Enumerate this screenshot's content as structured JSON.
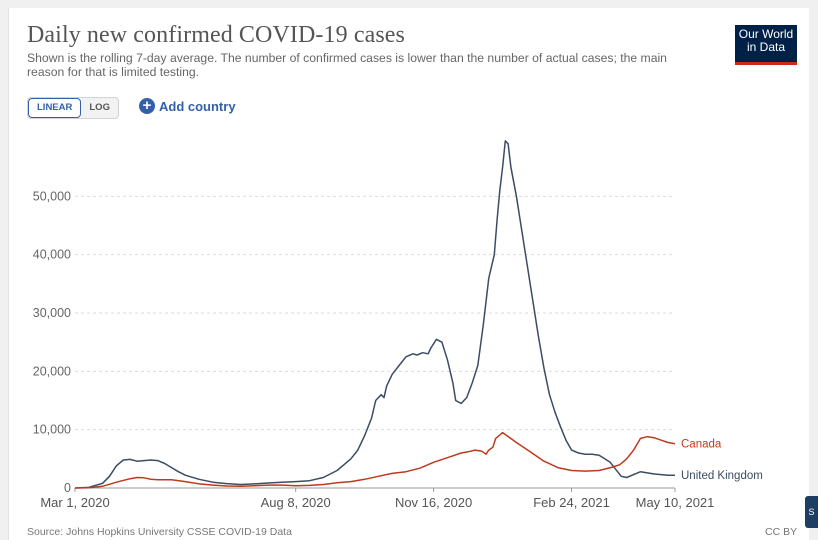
{
  "header": {
    "title": "Daily new confirmed COVID-19 cases",
    "subtitle": "Shown is the rolling 7-day average. The number of confirmed cases is lower than the number of actual cases; the main reason for that is limited testing.",
    "logo_line1": "Our World",
    "logo_line2": "in Data"
  },
  "controls": {
    "linear_label": "LINEAR",
    "log_label": "LOG",
    "add_country_label": "Add country",
    "add_icon": "plus-circle-icon"
  },
  "footer": {
    "source": "Source: Johns Hopkins University CSSE COVID-19 Data",
    "license": "CC BY"
  },
  "edge_tab_label": "S",
  "colors": {
    "uk": "#3b4c64",
    "canada": "#bd3b1d",
    "accent": "#3360a9",
    "logo_bg": "#002147",
    "logo_bar": "#ce261e"
  },
  "chart_data": {
    "type": "line",
    "title": "Daily new confirmed COVID-19 cases",
    "xlabel": "",
    "ylabel": "",
    "ylim": [
      0,
      60000
    ],
    "xlim_days": [
      0,
      435
    ],
    "yticks": [
      0,
      10000,
      20000,
      30000,
      40000,
      50000
    ],
    "ytick_labels": [
      "0",
      "10,000",
      "20,000",
      "30,000",
      "40,000",
      "50,000"
    ],
    "xticks": [
      0,
      160,
      260,
      360,
      435
    ],
    "xtick_labels": [
      "Mar 1, 2020",
      "Aug 8, 2020",
      "Nov 16, 2020",
      "Feb 24, 2021",
      "May 10, 2021"
    ],
    "grid": true,
    "x_unit": "days since Mar 1, 2020",
    "series": [
      {
        "name": "United Kingdom",
        "label": "United Kingdom",
        "color": "#3b4c64",
        "x": [
          0,
          10,
          20,
          25,
          30,
          35,
          40,
          45,
          50,
          55,
          60,
          65,
          70,
          75,
          80,
          90,
          100,
          110,
          120,
          130,
          140,
          150,
          160,
          170,
          180,
          190,
          195,
          200,
          205,
          210,
          215,
          218,
          222,
          224,
          226,
          230,
          235,
          240,
          245,
          248,
          252,
          256,
          258,
          262,
          266,
          270,
          274,
          276,
          280,
          284,
          288,
          292,
          296,
          300,
          304,
          306,
          308,
          310,
          312,
          314,
          316,
          320,
          324,
          328,
          332,
          336,
          340,
          344,
          348,
          352,
          356,
          360,
          365,
          370,
          375,
          380,
          384,
          388,
          392,
          396,
          400,
          410,
          420,
          430,
          435
        ],
        "values": [
          0,
          100,
          800,
          2000,
          3800,
          4800,
          4900,
          4600,
          4700,
          4800,
          4700,
          4200,
          3500,
          2800,
          2200,
          1500,
          1000,
          750,
          600,
          700,
          850,
          1000,
          1100,
          1250,
          1800,
          3000,
          4000,
          5000,
          6500,
          9000,
          12000,
          15000,
          16000,
          15500,
          17500,
          19500,
          21000,
          22500,
          23000,
          22800,
          23200,
          23000,
          24000,
          25500,
          25000,
          22000,
          18000,
          15000,
          14500,
          15500,
          18000,
          21000,
          28000,
          36000,
          40000,
          46000,
          51000,
          55000,
          59500,
          59000,
          55000,
          50000,
          44000,
          38000,
          32000,
          26000,
          20500,
          16000,
          13000,
          10500,
          8200,
          6500,
          6000,
          5800,
          5800,
          5600,
          5000,
          4400,
          3200,
          2000,
          1800,
          2800,
          2400,
          2200,
          2200
        ]
      },
      {
        "name": "Canada",
        "label": "Canada",
        "color": "#bd3b1d",
        "x": [
          0,
          10,
          20,
          30,
          40,
          45,
          50,
          55,
          60,
          70,
          80,
          90,
          100,
          110,
          120,
          130,
          140,
          150,
          160,
          170,
          180,
          190,
          200,
          210,
          220,
          230,
          240,
          250,
          260,
          270,
          280,
          285,
          290,
          295,
          298,
          300,
          303,
          305,
          310,
          320,
          330,
          340,
          350,
          360,
          370,
          380,
          390,
          395,
          400,
          405,
          410,
          415,
          420,
          425,
          430,
          435
        ],
        "values": [
          0,
          50,
          300,
          1000,
          1600,
          1800,
          1750,
          1500,
          1400,
          1400,
          1100,
          700,
          500,
          350,
          300,
          400,
          500,
          500,
          400,
          450,
          600,
          900,
          1100,
          1500,
          2000,
          2500,
          2800,
          3400,
          4400,
          5200,
          6000,
          6200,
          6500,
          6300,
          5800,
          6500,
          7000,
          8500,
          9500,
          7800,
          6200,
          4600,
          3500,
          3000,
          2900,
          3000,
          3600,
          4000,
          5000,
          6500,
          8500,
          8800,
          8600,
          8200,
          7800,
          7600
        ]
      }
    ]
  }
}
